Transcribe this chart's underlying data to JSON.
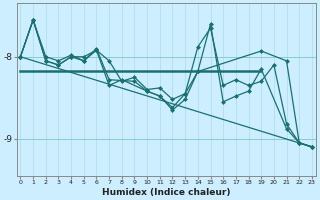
{
  "xlabel": "Humidex (Indice chaleur)",
  "bg_color": "#cceeff",
  "line_color": "#1a7070",
  "grid_minor_color": "#aadddd",
  "grid_major_color": "#88cccc",
  "series1_x": [
    0,
    1,
    2,
    3,
    4,
    5,
    6,
    7,
    8,
    9,
    10,
    11,
    12,
    13,
    14,
    19,
    21,
    22,
    23
  ],
  "series1_y": [
    -8.0,
    -7.55,
    -8.05,
    -8.1,
    -8.0,
    -8.0,
    -7.92,
    -8.05,
    -8.3,
    -8.25,
    -8.4,
    -8.38,
    -8.52,
    -8.45,
    -8.18,
    -7.93,
    -8.05,
    -9.05,
    -9.1
  ],
  "series2_x": [
    0,
    1,
    2,
    3,
    4,
    5,
    6,
    7,
    9,
    10,
    11,
    12,
    13,
    14,
    15,
    16,
    17,
    18,
    19,
    21,
    22,
    23
  ],
  "series2_y": [
    -8.0,
    -7.55,
    -8.0,
    -8.05,
    -7.98,
    -8.05,
    -7.9,
    -8.28,
    -8.3,
    -8.42,
    -8.48,
    -8.65,
    -8.52,
    -8.18,
    -7.6,
    -8.55,
    -8.48,
    -8.42,
    -8.15,
    -8.88,
    -9.05,
    -9.1
  ],
  "series3_x": [
    0,
    1,
    2,
    3,
    4,
    5,
    6,
    7,
    8,
    10,
    11,
    12,
    13,
    14,
    15,
    16,
    17,
    18,
    19,
    20,
    21,
    22,
    23
  ],
  "series3_y": [
    -8.0,
    -7.55,
    -8.05,
    -8.1,
    -8.0,
    -8.05,
    -7.92,
    -8.35,
    -8.28,
    -8.42,
    -8.48,
    -8.62,
    -8.45,
    -7.88,
    -7.65,
    -8.35,
    -8.28,
    -8.35,
    -8.3,
    -8.1,
    -8.82,
    -9.05,
    -9.1
  ],
  "flat_line_y": -8.18,
  "flat_line_x0": 0.0,
  "flat_line_x1": 19.0,
  "trend_x": [
    0,
    23
  ],
  "trend_y": [
    -8.0,
    -9.1
  ],
  "ylim": [
    -9.45,
    -7.35
  ],
  "xlim": [
    -0.3,
    23.3
  ],
  "yticks": [
    -9.0,
    -8.0
  ],
  "xticks": [
    0,
    1,
    2,
    3,
    4,
    5,
    6,
    7,
    8,
    9,
    10,
    11,
    12,
    13,
    14,
    15,
    16,
    17,
    18,
    19,
    20,
    21,
    22,
    23
  ],
  "marker_size": 2.5,
  "linewidth": 0.9,
  "flat_linewidth": 1.8,
  "trend_linewidth": 0.9
}
